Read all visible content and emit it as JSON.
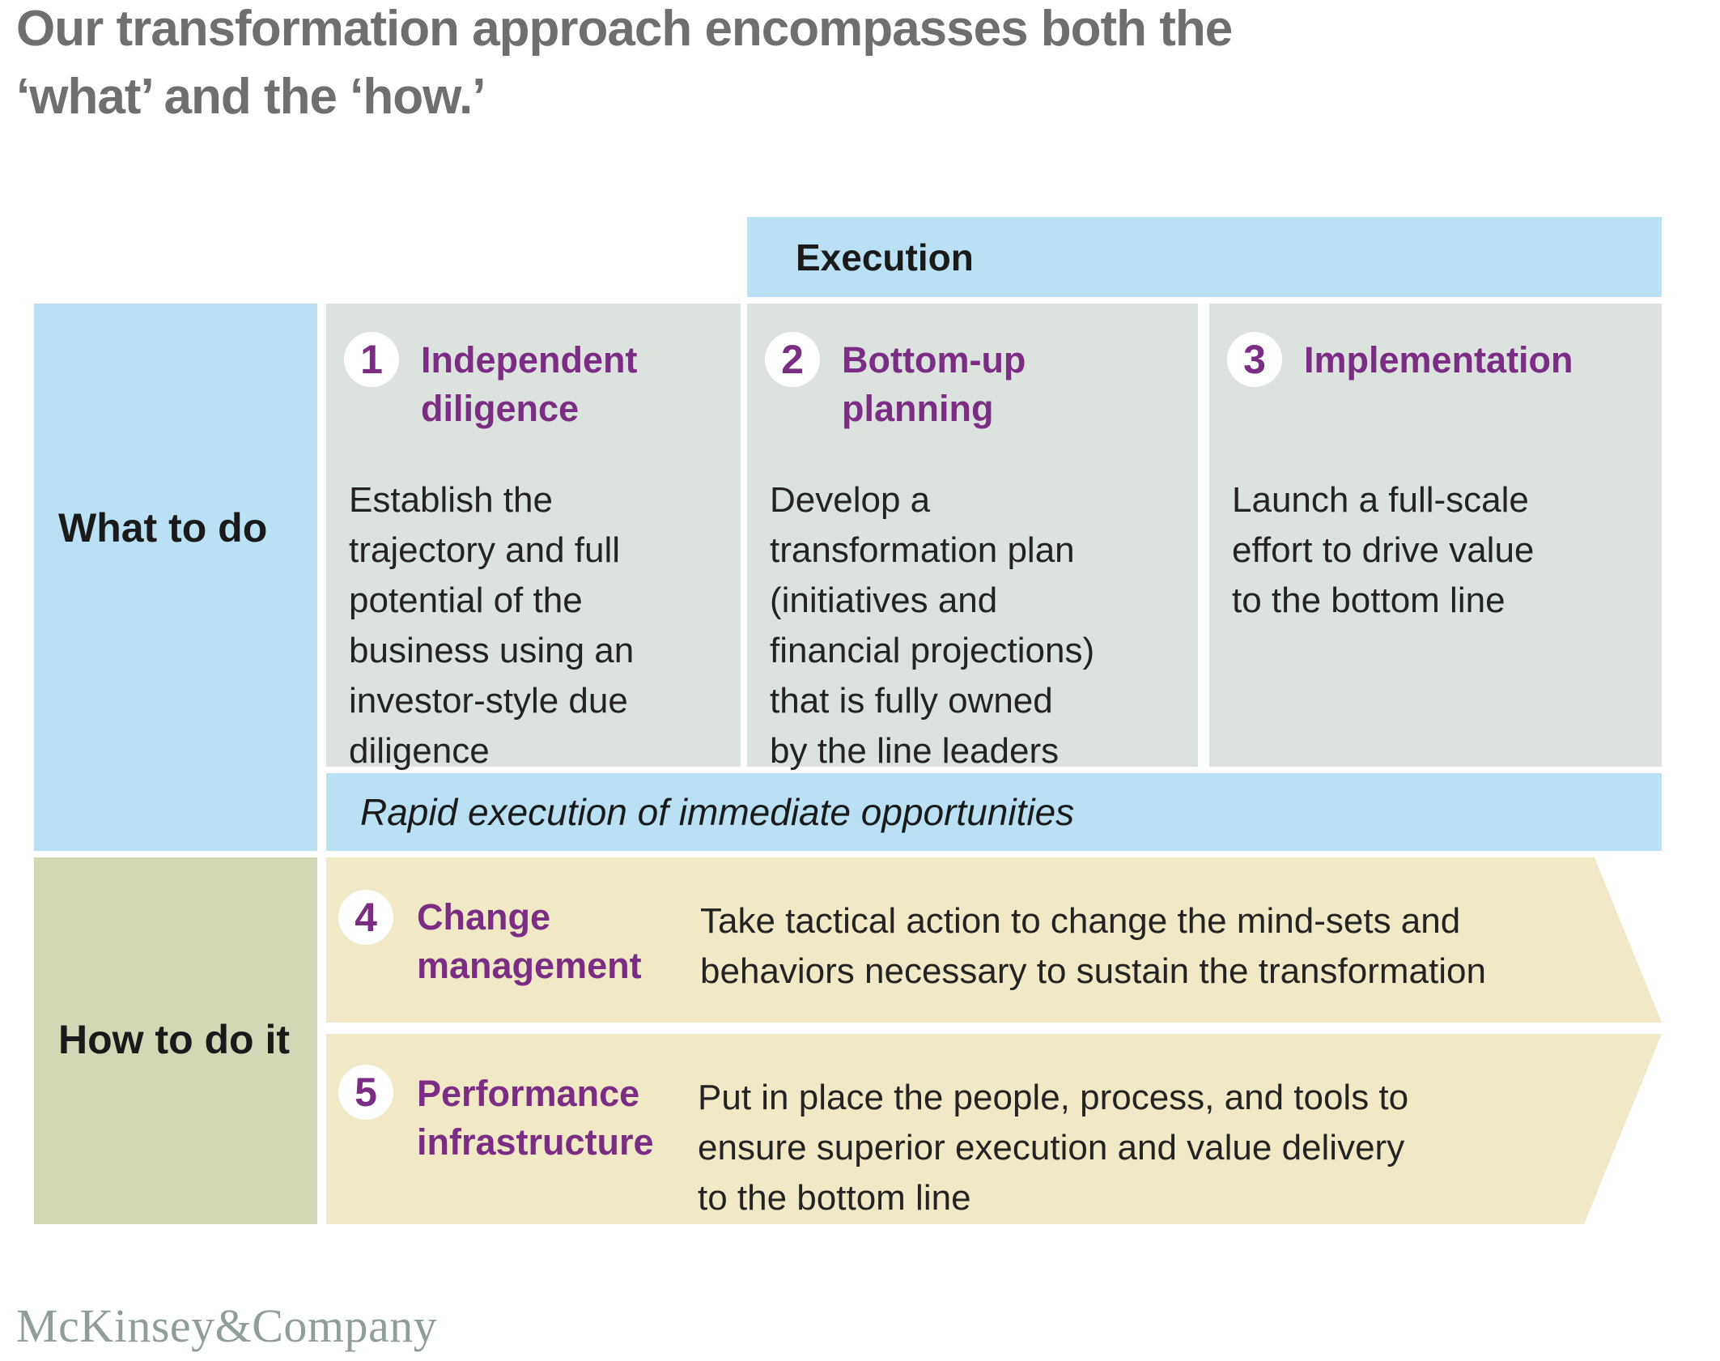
{
  "title": "Our transformation approach encompasses both the\n‘what’ and the ‘how.’",
  "execution_header": "Execution",
  "what_section": {
    "label": "What to do",
    "phases": [
      {
        "number": "1",
        "title": "Independent\ndiligence",
        "description": "Establish the\ntrajectory and full\npotential of the\nbusiness using an\ninvestor-style due\ndiligence"
      },
      {
        "number": "2",
        "title": "Bottom-up\nplanning",
        "description": "Develop a\ntransformation plan\n(initiatives and\nfinancial projections)\nthat is fully owned\nby the line leaders"
      },
      {
        "number": "3",
        "title": "Implementation",
        "description": "Launch a full-scale\neffort to drive value\nto the bottom line"
      }
    ],
    "banner": "Rapid execution of immediate opportunities"
  },
  "how_section": {
    "label": "How to do it",
    "steps": [
      {
        "number": "4",
        "title": "Change\nmanagement",
        "description": "Take tactical action to change the mind-sets and\nbehaviors necessary to sustain the transformation"
      },
      {
        "number": "5",
        "title": "Performance\ninfrastructure",
        "description": "Put in place the people, process, and tools to\nensure superior execution and value delivery\nto the bottom line"
      }
    ]
  },
  "footer": {
    "logo": "McKinsey&Company"
  },
  "colors": {
    "light_blue": "#b9e1f3",
    "box_gray": "#dce3df",
    "olive": "#d2d7b5",
    "tan": "#f1e9c6",
    "purple": "#7b2d84",
    "title_gray": "#6f6f6f",
    "text_dark": "#232323",
    "logo_gray": "#8f9e9b"
  }
}
